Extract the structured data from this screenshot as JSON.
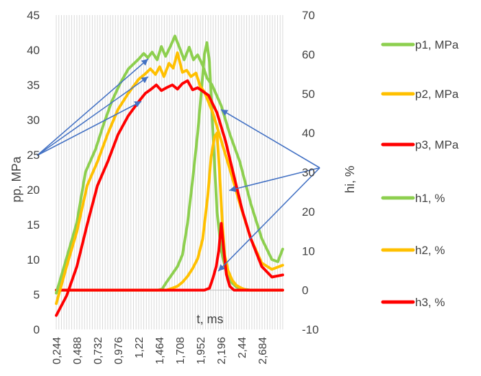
{
  "chart_data": {
    "type": "line",
    "xlabel": "t, ms",
    "ylabel_left": "pp, MPa",
    "ylabel_right": "hi, %",
    "x_range": [
      0.244,
      2.928
    ],
    "x_ticks": [
      "0,244",
      "0,488",
      "0,732",
      "0,976",
      "1,22",
      "1,464",
      "1,708",
      "1,952",
      "2,196",
      "2,44",
      "2,684"
    ],
    "x_tick_values": [
      0.244,
      0.488,
      0.732,
      0.976,
      1.22,
      1.464,
      1.708,
      1.952,
      2.196,
      2.44,
      2.684
    ],
    "y_left": {
      "range": [
        0,
        45
      ],
      "ticks": [
        "0",
        "5",
        "10",
        "15",
        "20",
        "25",
        "30",
        "35",
        "40",
        "45"
      ],
      "tick_values": [
        0,
        5,
        10,
        15,
        20,
        25,
        30,
        35,
        40,
        45
      ]
    },
    "y_right": {
      "range": [
        -10,
        70
      ],
      "ticks": [
        "-10",
        "0",
        "10",
        "20",
        "30",
        "40",
        "50",
        "60",
        "70"
      ],
      "tick_values": [
        -10,
        0,
        10,
        20,
        30,
        40,
        50,
        60,
        70
      ]
    },
    "grid": "vertical",
    "legend_position": "right",
    "series": [
      {
        "name": "p1, MPa",
        "axis": "left",
        "color": "#8DCF4F",
        "x": [
          0.244,
          0.366,
          0.488,
          0.59,
          0.71,
          0.8,
          0.9,
          1.0,
          1.1,
          1.22,
          1.28,
          1.33,
          1.38,
          1.44,
          1.49,
          1.54,
          1.6,
          1.65,
          1.71,
          1.76,
          1.82,
          1.87,
          1.92,
          1.98,
          2.03,
          2.09,
          2.2,
          2.3,
          2.42,
          2.55,
          2.68,
          2.8,
          2.87,
          2.928
        ],
        "y": [
          5.2,
          10.2,
          15.3,
          22.5,
          25.8,
          29.2,
          32.6,
          35.2,
          37.3,
          38.7,
          39.5,
          38.9,
          39.7,
          38.6,
          40.5,
          39.1,
          40.6,
          42.0,
          40.2,
          38.6,
          40.4,
          38.6,
          39.3,
          37.8,
          36.0,
          35.0,
          32.0,
          28.0,
          24.0,
          18.0,
          13.0,
          10.0,
          9.7,
          11.5
        ]
      },
      {
        "name": "p2, MPa",
        "axis": "left",
        "color": "#FFC000",
        "x": [
          0.244,
          0.366,
          0.488,
          0.61,
          0.732,
          0.854,
          0.976,
          1.098,
          1.22,
          1.3,
          1.36,
          1.42,
          1.47,
          1.52,
          1.58,
          1.63,
          1.68,
          1.74,
          1.79,
          1.84,
          1.9,
          1.95,
          2.0,
          2.1,
          2.2,
          2.3,
          2.42,
          2.55,
          2.68,
          2.8,
          2.928
        ],
        "y": [
          3.7,
          9.0,
          14.0,
          20.6,
          24.0,
          28.0,
          31.5,
          33.8,
          35.8,
          36.6,
          37.3,
          36.5,
          37.6,
          36.2,
          38.1,
          37.4,
          39.6,
          36.8,
          37.1,
          36.2,
          36.7,
          34.8,
          34.0,
          31.0,
          27.0,
          23.0,
          18.0,
          13.0,
          9.5,
          8.6,
          9.2
        ]
      },
      {
        "name": "p3, MPa",
        "axis": "left",
        "color": "#FF0000",
        "x": [
          0.244,
          0.366,
          0.488,
          0.61,
          0.732,
          0.854,
          0.976,
          1.098,
          1.22,
          1.3,
          1.37,
          1.43,
          1.49,
          1.55,
          1.62,
          1.68,
          1.74,
          1.8,
          1.86,
          1.92,
          1.98,
          2.05,
          2.15,
          2.25,
          2.35,
          2.45,
          2.55,
          2.68,
          2.8,
          2.928
        ],
        "y": [
          2.0,
          4.8,
          9.0,
          15.0,
          20.6,
          24.0,
          27.9,
          30.6,
          32.6,
          33.8,
          34.4,
          35.0,
          34.2,
          34.6,
          35.0,
          34.4,
          35.2,
          35.6,
          34.3,
          34.6,
          34.1,
          33.5,
          31.0,
          27.0,
          22.0,
          17.0,
          13.0,
          9.0,
          7.5,
          7.8
        ]
      },
      {
        "name": "h1, %",
        "axis": "right",
        "color": "#8DCF4F",
        "x": [
          0.244,
          1.45,
          1.5,
          1.55,
          1.6,
          1.68,
          1.74,
          1.8,
          1.86,
          1.92,
          1.97,
          2.0,
          2.03,
          2.06,
          2.09,
          2.12,
          2.15,
          2.2,
          2.26,
          2.32,
          2.38,
          2.44,
          2.55,
          2.928
        ],
        "y": [
          0,
          0,
          0.3,
          2.0,
          3.5,
          6.0,
          9.0,
          17.0,
          28.0,
          40.0,
          52.0,
          60.0,
          63.0,
          58.0,
          45.0,
          32.0,
          20.0,
          10.0,
          4.5,
          2.0,
          0.8,
          0.3,
          0,
          0
        ]
      },
      {
        "name": "h2, %",
        "axis": "right",
        "color": "#FFC000",
        "x": [
          0.244,
          1.55,
          1.62,
          1.68,
          1.74,
          1.8,
          1.86,
          1.92,
          1.98,
          2.04,
          2.08,
          2.12,
          2.15,
          2.18,
          2.21,
          2.24,
          2.28,
          2.33,
          2.38,
          2.44,
          2.5,
          2.928
        ],
        "y": [
          0,
          0,
          0.5,
          1.0,
          2.0,
          3.5,
          5.5,
          8.0,
          13.0,
          24.0,
          34.0,
          39.0,
          40.0,
          30.0,
          18.0,
          9.0,
          5.0,
          2.5,
          1.2,
          0.5,
          0,
          0
        ]
      },
      {
        "name": "h3, %",
        "axis": "right",
        "color": "#FF0000",
        "x": [
          0.244,
          1.94,
          2.0,
          2.06,
          2.1,
          2.14,
          2.17,
          2.2,
          2.23,
          2.26,
          2.3,
          2.35,
          2.4,
          2.928
        ],
        "y": [
          0,
          0,
          0,
          0.5,
          3.0,
          6.0,
          10.0,
          17.0,
          10.0,
          4.0,
          1.0,
          0,
          0,
          0
        ]
      }
    ]
  }
}
